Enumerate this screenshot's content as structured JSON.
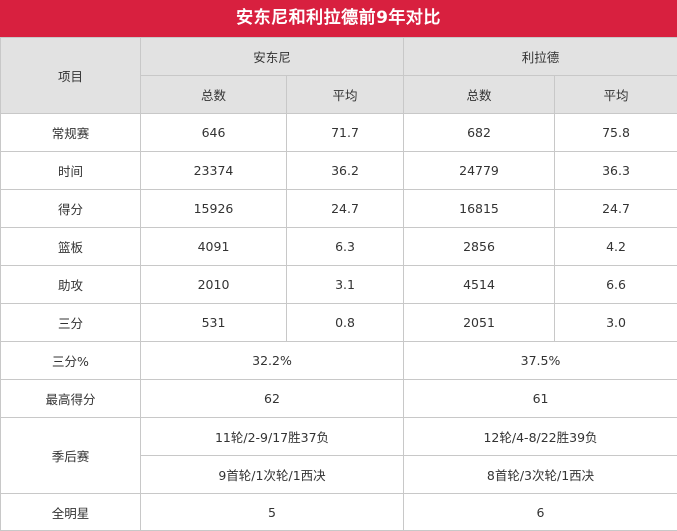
{
  "title": "安东尼和利拉德前9年对比",
  "header": {
    "item": "项目",
    "player1": "安东尼",
    "player2": "利拉德",
    "total": "总数",
    "avg": "平均"
  },
  "rows": [
    {
      "label": "常规赛",
      "p1_total": "646",
      "p1_avg": "71.7",
      "p2_total": "682",
      "p2_avg": "75.8"
    },
    {
      "label": "时间",
      "p1_total": "23374",
      "p1_avg": "36.2",
      "p2_total": "24779",
      "p2_avg": "36.3"
    },
    {
      "label": "得分",
      "p1_total": "15926",
      "p1_avg": "24.7",
      "p2_total": "16815",
      "p2_avg": "24.7"
    },
    {
      "label": "篮板",
      "p1_total": "4091",
      "p1_avg": "6.3",
      "p2_total": "2856",
      "p2_avg": "4.2"
    },
    {
      "label": "助攻",
      "p1_total": "2010",
      "p1_avg": "3.1",
      "p2_total": "4514",
      "p2_avg": "6.6"
    },
    {
      "label": "三分",
      "p1_total": "531",
      "p1_avg": "0.8",
      "p2_total": "2051",
      "p2_avg": "3.0"
    }
  ],
  "three_pct": {
    "label": "三分%",
    "p1": "32.2%",
    "p2": "37.5%"
  },
  "career_high": {
    "label": "最高得分",
    "p1": "62",
    "p2": "61"
  },
  "playoffs": {
    "label": "季后赛",
    "p1_line1": "11轮/2-9/17胜37负",
    "p2_line1": "12轮/4-8/22胜39负",
    "p1_line2": "9首轮/1次轮/1西决",
    "p2_line2": "8首轮/3次轮/1西决"
  },
  "all_star": {
    "label": "全明星",
    "p1": "5",
    "p2": "6"
  },
  "colors": {
    "title_bg": "#d8203f",
    "header_bg": "#e2e2e2",
    "border": "#c8c8c8"
  }
}
